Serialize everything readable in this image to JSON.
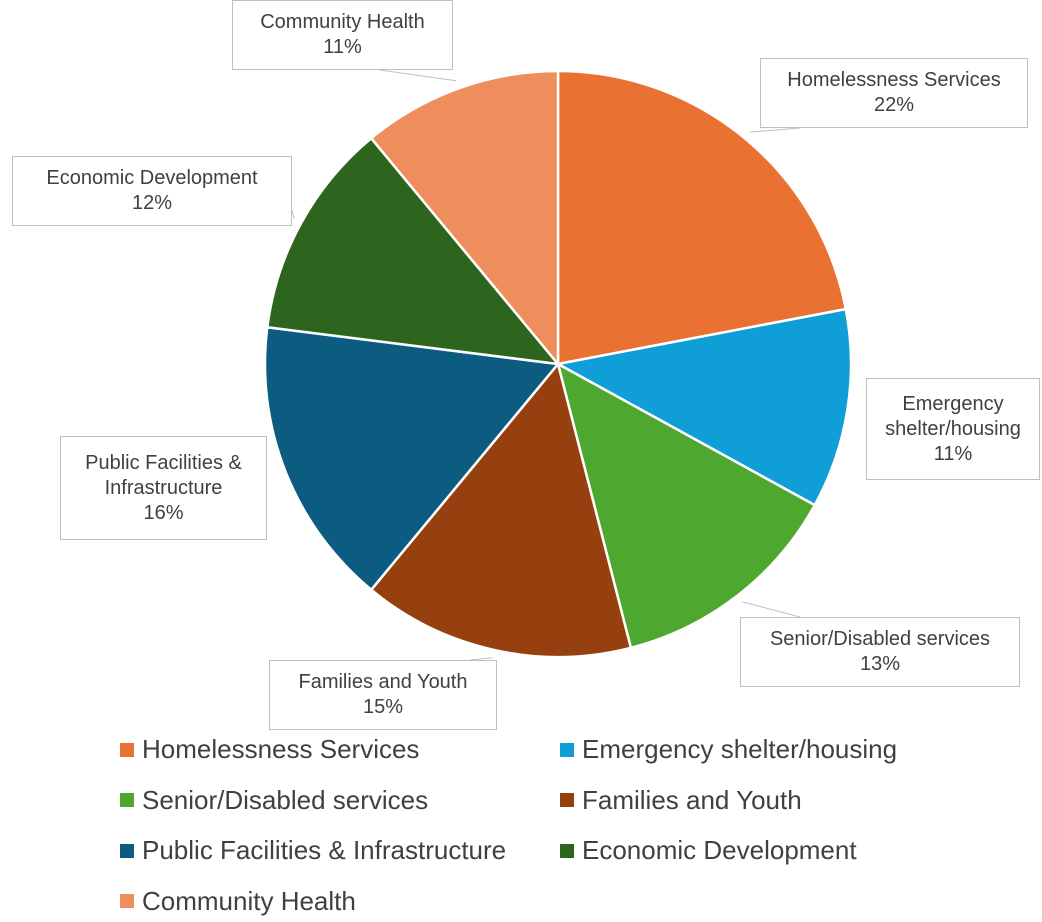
{
  "chart_data": {
    "type": "pie",
    "categories": [
      "Homelessness Services",
      "Emergency shelter/housing",
      "Senior/Disabled services",
      "Families and Youth",
      "Public Facilities & Infrastructure",
      "Economic Development",
      "Community Health"
    ],
    "values": [
      22,
      11,
      13,
      15,
      16,
      12,
      11
    ],
    "value_labels": [
      "22%",
      "11%",
      "13%",
      "15%",
      "16%",
      "12%",
      "11%"
    ],
    "colors": [
      "#E97132",
      "#0F9ED5",
      "#4EA72E",
      "#97400F",
      "#0B5C80",
      "#2E651E",
      "#EE8E5D"
    ],
    "legend": "bottom"
  }
}
